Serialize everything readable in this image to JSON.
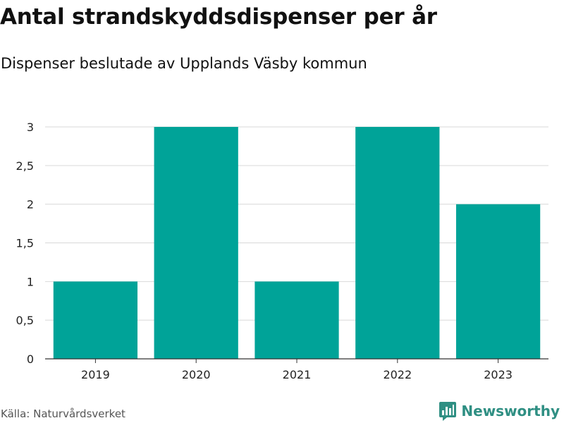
{
  "header": {
    "title": "Antal strandskyddsdispenser per år",
    "subtitle": "Dispenser beslutade av Upplands Väsby kommun"
  },
  "footer": {
    "source": "Källa: Naturvårdsverket",
    "brand": "Newsworthy",
    "brand_icon": "bar-chart-speech-bubble-icon"
  },
  "colors": {
    "bar": "#00a398",
    "grid": "#d9d9d9",
    "axis": "#333333",
    "brand": "#2f8f83"
  },
  "chart_data": {
    "type": "bar",
    "title": "Antal strandskyddsdispenser per år",
    "subtitle": "Dispenser beslutade av Upplands Väsby kommun",
    "xlabel": "",
    "ylabel": "",
    "categories": [
      "2019",
      "2020",
      "2021",
      "2022",
      "2023"
    ],
    "values": [
      1,
      3,
      1,
      3,
      2
    ],
    "ylim": [
      0,
      3
    ],
    "yticks": [
      0,
      0.5,
      1,
      1.5,
      2,
      2.5,
      3
    ],
    "ytick_labels": [
      "0",
      "0,5",
      "1",
      "1,5",
      "2",
      "2,5",
      "3"
    ],
    "grid": true,
    "legend": "none"
  }
}
